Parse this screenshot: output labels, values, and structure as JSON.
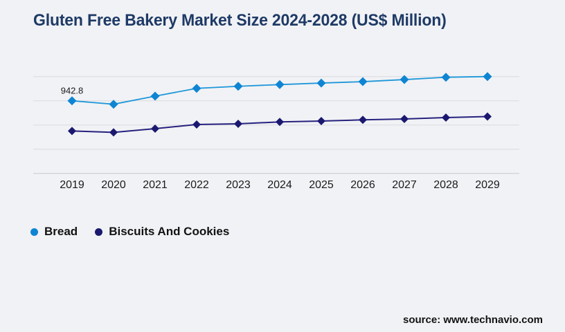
{
  "title": "Gluten Free Bakery Market Size 2024-2028 (US$ Million)",
  "source": "source: www.technavio.com",
  "colors": {
    "background": "#f1f2f5",
    "title_text": "#1e3a66",
    "grid_line": "#dadade",
    "axis_line": "#c7c7cc",
    "label_text": "#1a1a1a",
    "bread_accent": "#0e85d3",
    "biscuits_accent": "#1b1870"
  },
  "chart_data": {
    "type": "line",
    "title": "Gluten Free Bakery Market Size 2024-2028 (US$ Million)",
    "unit": "US$ Million",
    "xlabel": "",
    "ylabel": "",
    "categories": [
      "2019",
      "2020",
      "2021",
      "2022",
      "2023",
      "2024",
      "2025",
      "2026",
      "2027",
      "2028",
      "2029"
    ],
    "series": [
      {
        "name": "Bread",
        "marker": "diamond",
        "marker_color": "#0e85d3",
        "line_color": "#1e97d9",
        "values": [
          942.8,
          898,
          1003,
          1104,
          1131,
          1153,
          1173,
          1191,
          1218,
          1248,
          1257
        ]
      },
      {
        "name": "Biscuits And Cookies",
        "marker": "diamond",
        "marker_color": "#1b1870",
        "line_color": "#26217e",
        "values": [
          551,
          533,
          581,
          635,
          644,
          668,
          680,
          695,
          707,
          725,
          738
        ]
      }
    ],
    "annotations": [
      {
        "series": "Bread",
        "category": "2019",
        "text": "942.8"
      }
    ],
    "axis": {
      "ylim": [
        0,
        1400
      ],
      "gridlines": 5,
      "y_gridline_step": 314.27,
      "y_axis_labels_visible": false,
      "grid": true
    },
    "legend_position": "bottom-left",
    "note": "Only the 2019 Bread value (942.8) carries a data label in the image; all other values are estimated from gridline positions."
  }
}
